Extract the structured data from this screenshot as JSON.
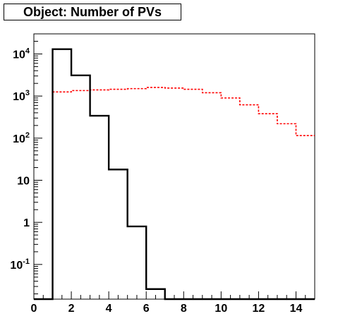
{
  "chart_data": {
    "type": "step-histogram",
    "title": "Object: Number of PVs",
    "xlabel": "",
    "ylabel": "",
    "xlim": [
      0,
      15
    ],
    "ylim": [
      0.015,
      30000
    ],
    "yscale": "log",
    "grid": false,
    "bin_edges": [
      0,
      1,
      2,
      3,
      4,
      5,
      6,
      7,
      8,
      9,
      10,
      11,
      12,
      13,
      14,
      15
    ],
    "x_ticks": [
      "0",
      "2",
      "4",
      "6",
      "8",
      "10",
      "12",
      "14"
    ],
    "y_ticks": [
      {
        "value": 0.1,
        "base": "10",
        "exp": "-1"
      },
      {
        "value": 1,
        "base": "1",
        "exp": ""
      },
      {
        "value": 10,
        "base": "10",
        "exp": ""
      },
      {
        "value": 100,
        "base": "10",
        "exp": "2"
      },
      {
        "value": 1000,
        "base": "10",
        "exp": "3"
      },
      {
        "value": 10000,
        "base": "10",
        "exp": "4"
      }
    ],
    "series": [
      {
        "color": "#000000",
        "style": "solid",
        "values": [
          0,
          13000,
          3100,
          340,
          18,
          0.8,
          0.026,
          0,
          0,
          0,
          0,
          0,
          0,
          0,
          0
        ]
      },
      {
        "color": "#ff0000",
        "style": "dashed",
        "values": [
          0,
          1250,
          1350,
          1400,
          1450,
          1500,
          1600,
          1550,
          1450,
          1200,
          900,
          620,
          380,
          220,
          115
        ]
      }
    ]
  }
}
